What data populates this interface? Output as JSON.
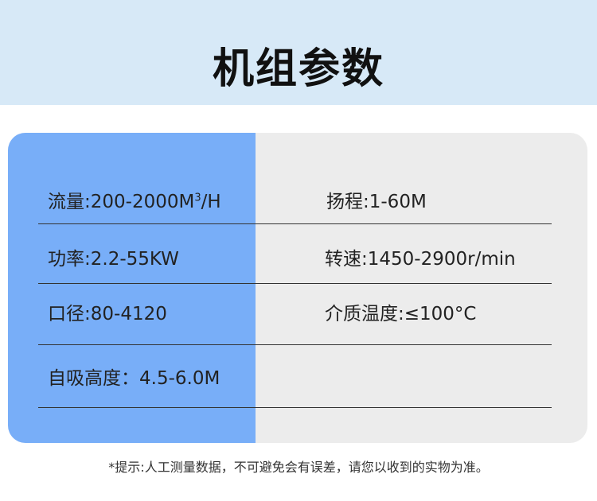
{
  "title": "机组参数",
  "colors": {
    "header_bg": "#d7e9f7",
    "left_column": "#78aef8",
    "right_column": "#ececec"
  },
  "params": [
    {
      "label": "流量:200-2000M",
      "sup": "3",
      "suffix": "/H"
    },
    {
      "label": "扬程:1-60M"
    },
    {
      "label": "功率:2.2-55KW"
    },
    {
      "label": "转速:1450-2900r/min"
    },
    {
      "label": "口径:80-4120"
    },
    {
      "label": "介质温度:≤100°C"
    },
    {
      "label": "自吸高度：4.5-6.0M"
    }
  ],
  "note": "*提示:人工测量数据，不可避免会有误差，请您以收到的实物为准。"
}
